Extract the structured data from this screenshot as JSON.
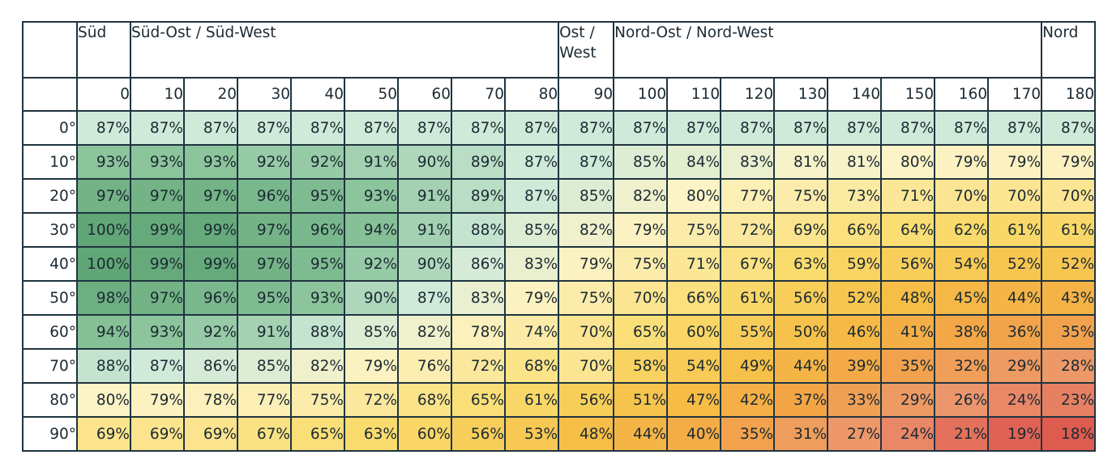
{
  "chart_data": {
    "type": "heatmap",
    "group_headers": [
      {
        "label": "Süd",
        "span": 1
      },
      {
        "label": "Süd-Ost / Süd-West",
        "span": 8
      },
      {
        "label": "Ost / West",
        "span": 1
      },
      {
        "label": "Nord-Ost / Nord-West",
        "span": 8
      },
      {
        "label": "Nord",
        "span": 1
      }
    ],
    "columns": [
      "0",
      "10",
      "20",
      "30",
      "40",
      "50",
      "60",
      "70",
      "80",
      "90",
      "100",
      "110",
      "120",
      "130",
      "140",
      "150",
      "160",
      "170",
      "180"
    ],
    "rows": [
      "0°",
      "10°",
      "20°",
      "30°",
      "40°",
      "50°",
      "60°",
      "70°",
      "80°",
      "90°"
    ],
    "values": [
      [
        87,
        87,
        87,
        87,
        87,
        87,
        87,
        87,
        87,
        87,
        87,
        87,
        87,
        87,
        87,
        87,
        87,
        87,
        87
      ],
      [
        93,
        93,
        93,
        92,
        92,
        91,
        90,
        89,
        87,
        87,
        85,
        84,
        83,
        81,
        81,
        80,
        79,
        79,
        79
      ],
      [
        97,
        97,
        97,
        96,
        95,
        93,
        91,
        89,
        87,
        85,
        82,
        80,
        77,
        75,
        73,
        71,
        70,
        70,
        70
      ],
      [
        100,
        99,
        99,
        97,
        96,
        94,
        91,
        88,
        85,
        82,
        79,
        75,
        72,
        69,
        66,
        64,
        62,
        61,
        61
      ],
      [
        100,
        99,
        99,
        97,
        95,
        92,
        90,
        86,
        83,
        79,
        75,
        71,
        67,
        63,
        59,
        56,
        54,
        52,
        52
      ],
      [
        98,
        97,
        96,
        95,
        93,
        90,
        87,
        83,
        79,
        75,
        70,
        66,
        61,
        56,
        52,
        48,
        45,
        44,
        43
      ],
      [
        94,
        93,
        92,
        91,
        88,
        85,
        82,
        78,
        74,
        70,
        65,
        60,
        55,
        50,
        46,
        41,
        38,
        36,
        35
      ],
      [
        88,
        87,
        86,
        85,
        82,
        79,
        76,
        72,
        68,
        70,
        58,
        54,
        49,
        44,
        39,
        35,
        32,
        29,
        28
      ],
      [
        80,
        79,
        78,
        77,
        75,
        72,
        68,
        65,
        61,
        56,
        51,
        47,
        42,
        37,
        33,
        29,
        26,
        24,
        23
      ],
      [
        69,
        69,
        69,
        67,
        65,
        63,
        60,
        56,
        53,
        48,
        44,
        40,
        35,
        31,
        27,
        24,
        21,
        19,
        18
      ]
    ],
    "unit": "%",
    "colors": {
      "grid": "#1f3440",
      "text": "#1c2a33",
      "scale_high": "#64a97a",
      "scale_mid": "#fcf0bf",
      "scale_low": "#df5c52"
    }
  }
}
